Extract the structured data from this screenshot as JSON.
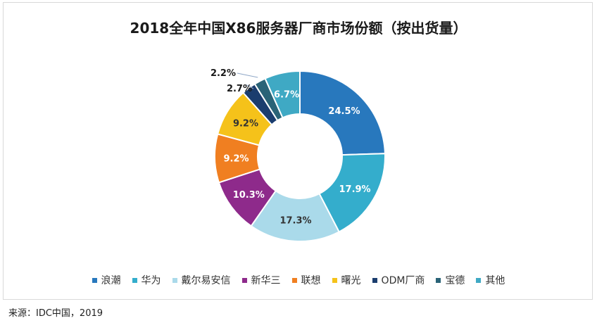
{
  "chart_data": {
    "type": "pie",
    "title": "2018全年中国X86服务器厂商市场份额（按出货量）",
    "categories": [
      "浪潮",
      "华为",
      "戴尔易安信",
      "新华三",
      "联想",
      "曙光",
      "ODM厂商",
      "宝德",
      "其他"
    ],
    "values": [
      24.5,
      17.9,
      17.3,
      10.3,
      9.2,
      9.2,
      2.7,
      2.2,
      6.7
    ],
    "labels": [
      "24.5%",
      "17.9%",
      "17.3%",
      "10.3%",
      "9.2%",
      "9.2%",
      "2.7%",
      "2.2%",
      "6.7%"
    ],
    "colors": [
      "#2878bd",
      "#34adcc",
      "#aadaea",
      "#8e2a8b",
      "#f07f21",
      "#f5c21a",
      "#1b3d6e",
      "#2a6377",
      "#3fa9c4"
    ],
    "label_colors": [
      "#ffffff",
      "#ffffff",
      "#333333",
      "#ffffff",
      "#ffffff",
      "#333333",
      "#333333",
      "#333333",
      "#ffffff"
    ],
    "donut": true,
    "legend_position": "bottom"
  },
  "source": "来源：IDC中国，2019"
}
